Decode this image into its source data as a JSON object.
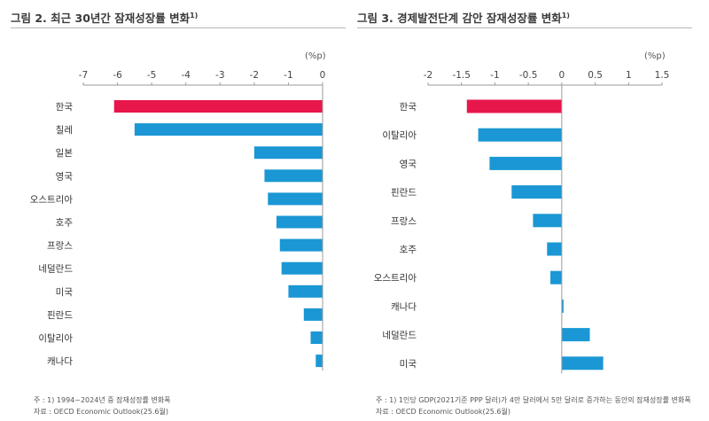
{
  "chart_data": [
    {
      "type": "bar",
      "orientation": "horizontal",
      "title": "그림 2. 최근 30년간 잠재성장률 변화",
      "title_sup": "1)",
      "unit": "(%p)",
      "xlim": [
        -7,
        0
      ],
      "ticks": [
        "-7",
        "-6",
        "-5",
        "-4",
        "-3",
        "-2",
        "-1",
        "0"
      ],
      "tick_values": [
        -7,
        -6,
        -5,
        -4,
        -3,
        -2,
        -1,
        0
      ],
      "categories": [
        "한국",
        "칠레",
        "일본",
        "영국",
        "오스트리아",
        "호주",
        "프랑스",
        "네덜란드",
        "미국",
        "핀란드",
        "이탈리아",
        "캐나다"
      ],
      "values": [
        -6.1,
        -5.5,
        -2.0,
        -1.7,
        -1.6,
        -1.35,
        -1.25,
        -1.2,
        -1.0,
        -0.55,
        -0.35,
        -0.2
      ],
      "highlight": "한국",
      "colors": {
        "highlight": "#e8174b",
        "default": "#1a97d4"
      },
      "note": "주 : 1) 1994~2024년 중 잠재성장률 변화폭",
      "source": "자료 : OECD Economic Outlook(25.6월)"
    },
    {
      "type": "bar",
      "orientation": "horizontal",
      "title": "그림 3. 경제발전단계 감안 잠재성장률 변화",
      "title_sup": "1)",
      "unit": "(%p)",
      "xlim": [
        -2,
        1.5
      ],
      "ticks": [
        "-2",
        "-1.5",
        "-1",
        "-0.5",
        "0",
        "0.5",
        "1",
        "1.5"
      ],
      "tick_values": [
        -2,
        -1.5,
        -1,
        -0.5,
        0,
        0.5,
        1,
        1.5
      ],
      "categories": [
        "한국",
        "이탈리아",
        "영국",
        "핀란드",
        "프랑스",
        "호주",
        "오스트리아",
        "캐나다",
        "네덜란드",
        "미국"
      ],
      "values": [
        -1.42,
        -1.25,
        -1.08,
        -0.75,
        -0.43,
        -0.22,
        -0.17,
        0.02,
        0.42,
        0.62
      ],
      "highlight": "한국",
      "colors": {
        "highlight": "#e8174b",
        "default": "#1a97d4"
      },
      "note": "주 : 1) 1인당 GDP(2021기준 PPP 달러)가 4만 달러에서 5만 달러로 증가하는 동안의 잠재성장률 변화폭",
      "source": "자료 : OECD Economic Outlook(25.6월)"
    }
  ]
}
